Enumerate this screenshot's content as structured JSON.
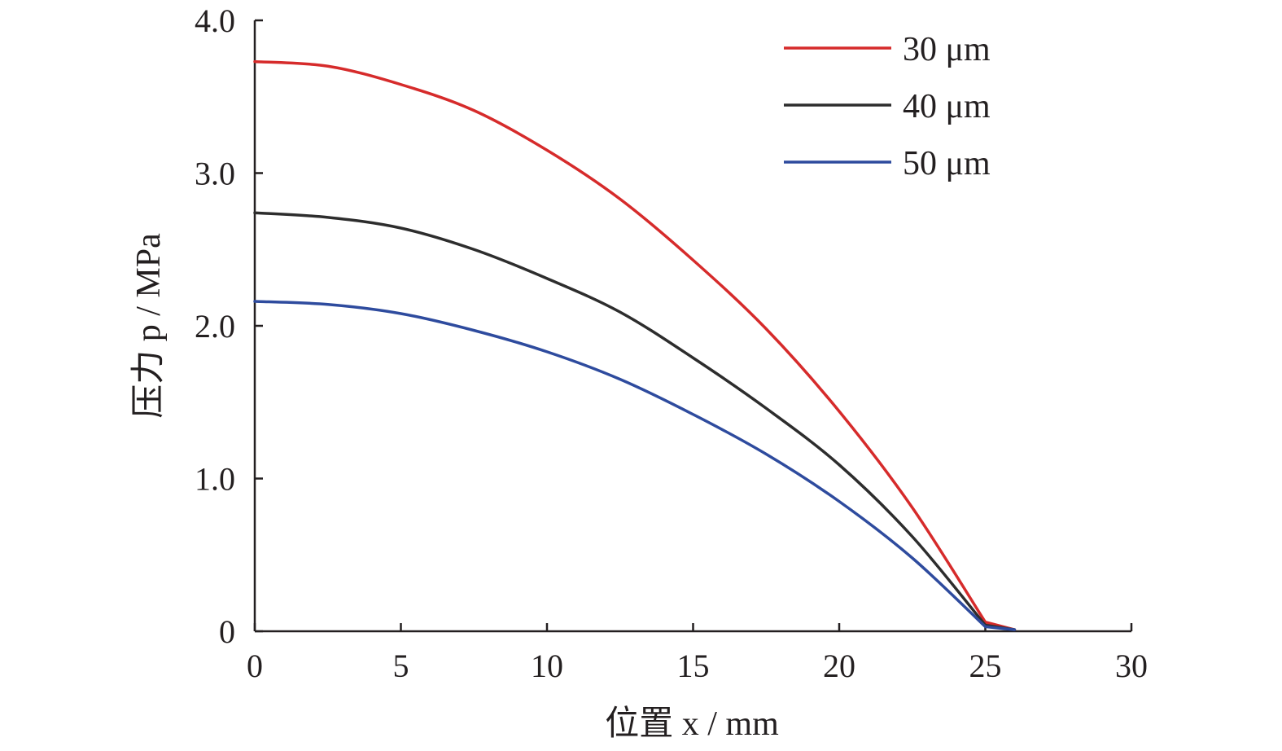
{
  "chart_data": {
    "type": "line",
    "title": "",
    "xlabel": "位置 x / mm",
    "ylabel": "压力 p / MPa",
    "xlim": [
      0,
      30
    ],
    "ylim": [
      0,
      4.0
    ],
    "x_ticks": [
      "0",
      "5",
      "10",
      "15",
      "20",
      "25",
      "30"
    ],
    "y_ticks": [
      "0",
      "1.0",
      "2.0",
      "3.0",
      "4.0"
    ],
    "grid": false,
    "legend_position": "top-right",
    "x": [
      0,
      2.5,
      5,
      7.5,
      10,
      12.5,
      15,
      17.5,
      20,
      22.5,
      25,
      26
    ],
    "series": [
      {
        "name": "30 μm",
        "color": "#d62b2b",
        "values": [
          3.73,
          3.7,
          3.58,
          3.41,
          3.15,
          2.83,
          2.43,
          1.98,
          1.44,
          0.81,
          0.06,
          0.01
        ]
      },
      {
        "name": "40 μm",
        "color": "#2d2d2d",
        "values": [
          2.74,
          2.71,
          2.64,
          2.5,
          2.31,
          2.09,
          1.79,
          1.46,
          1.09,
          0.62,
          0.04,
          0.01
        ]
      },
      {
        "name": "50 μm",
        "color": "#2e4b9e",
        "values": [
          2.16,
          2.14,
          2.08,
          1.97,
          1.83,
          1.65,
          1.42,
          1.16,
          0.85,
          0.48,
          0.03,
          0.01
        ]
      }
    ]
  }
}
